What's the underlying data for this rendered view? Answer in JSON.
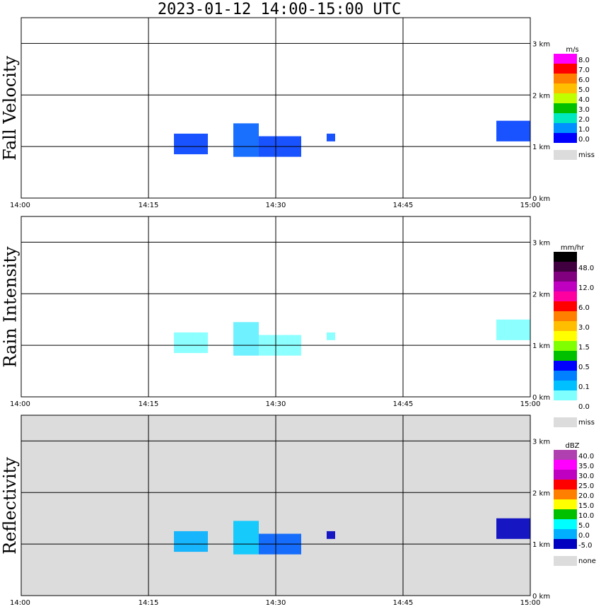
{
  "title": "2023-01-12  14:00-15:00 UTC",
  "colors": {
    "panel_border": "#000000",
    "grid": "#000000",
    "missing_background": "#dcdcdc"
  },
  "chart_data": [
    {
      "type": "heatmap",
      "title": "Fall Velocity",
      "xlabel": "",
      "ylabel": "Fall Velocity",
      "x_ticks": [
        "14:00",
        "14:15",
        "14:30",
        "14:45",
        "15:00"
      ],
      "y_ticks": [
        "0 km",
        "1 km",
        "2 km",
        "3 km"
      ],
      "ylim": [
        0,
        3.5
      ],
      "grid": true,
      "background": "white",
      "colorbar": {
        "unit": "m/s",
        "labels": [
          "8.0",
          "7.0",
          "6.0",
          "5.0",
          "4.0",
          "3.0",
          "2.0",
          "1.0",
          "0.0"
        ],
        "colors": [
          "#ff00ff",
          "#ff0000",
          "#ff7f00",
          "#ffbf00",
          "#bfff00",
          "#00c000",
          "#00e8c0",
          "#0090ff",
          "#0000ff"
        ],
        "missing_label": "miss",
        "missing_color": "#dcdcdc"
      },
      "echoes": [
        {
          "start": "14:18",
          "end": "14:22",
          "base_km": 0.85,
          "top_km": 1.25,
          "color": "#0040ff"
        },
        {
          "start": "14:25",
          "end": "14:28",
          "base_km": 0.8,
          "top_km": 1.45,
          "color": "#0060ff"
        },
        {
          "start": "14:28",
          "end": "14:33",
          "base_km": 0.8,
          "top_km": 1.2,
          "color": "#0040ff"
        },
        {
          "start": "14:36",
          "end": "14:37",
          "base_km": 1.1,
          "top_km": 1.25,
          "color": "#0040ff"
        },
        {
          "start": "14:56",
          "end": "15:00",
          "base_km": 1.1,
          "top_km": 1.5,
          "color": "#0040ff"
        }
      ]
    },
    {
      "type": "heatmap",
      "title": "Rain Intensity",
      "xlabel": "",
      "ylabel": "Rain Intensity",
      "x_ticks": [
        "14:00",
        "14:15",
        "14:30",
        "14:45",
        "15:00"
      ],
      "y_ticks": [
        "0 km",
        "1 km",
        "2 km",
        "3 km"
      ],
      "ylim": [
        0,
        3.5
      ],
      "grid": true,
      "background": "white",
      "colorbar": {
        "unit": "mm/hr",
        "labels": [
          "48.0",
          "12.0",
          "6.0",
          "3.0",
          "1.5",
          "0.5",
          "0.1",
          "0.0"
        ],
        "colors": [
          "#000000",
          "#400040",
          "#800080",
          "#c000c0",
          "#ff00a0",
          "#ff0000",
          "#ff8000",
          "#ffbf00",
          "#ffff00",
          "#80ff00",
          "#00c000",
          "#0000ff",
          "#0080ff",
          "#00c0ff",
          "#80ffff",
          "#ffffff"
        ],
        "missing_label": "miss",
        "missing_color": "#dcdcdc"
      },
      "echoes": [
        {
          "start": "14:18",
          "end": "14:22",
          "base_km": 0.85,
          "top_km": 1.25,
          "color": "#80ffff"
        },
        {
          "start": "14:25",
          "end": "14:28",
          "base_km": 0.8,
          "top_km": 1.45,
          "color": "#60f0ff"
        },
        {
          "start": "14:28",
          "end": "14:33",
          "base_km": 0.8,
          "top_km": 1.2,
          "color": "#80ffff"
        },
        {
          "start": "14:36",
          "end": "14:37",
          "base_km": 1.1,
          "top_km": 1.25,
          "color": "#80ffff"
        },
        {
          "start": "14:56",
          "end": "15:00",
          "base_km": 1.1,
          "top_km": 1.5,
          "color": "#80ffff"
        }
      ]
    },
    {
      "type": "heatmap",
      "title": "Reflectivity",
      "xlabel": "",
      "ylabel": "Reflectivity",
      "x_ticks": [
        "14:00",
        "14:15",
        "14:30",
        "14:45",
        "15:00"
      ],
      "y_ticks": [
        "0 km",
        "1 km",
        "2 km",
        "3 km"
      ],
      "ylim": [
        0,
        3.5
      ],
      "grid": true,
      "background": "gray",
      "colorbar": {
        "unit": "dBZ",
        "labels": [
          "40.0",
          "35.0",
          "30.0",
          "25.0",
          "20.0",
          "15.0",
          "10.0",
          "5.0",
          "0.0",
          "-5.0"
        ],
        "colors": [
          "#b040b0",
          "#ff00ff",
          "#c000c0",
          "#ff0000",
          "#ff8000",
          "#ffff00",
          "#00c000",
          "#00ffff",
          "#00b0ff",
          "#0000c0"
        ],
        "missing_label": "none",
        "missing_color": "#dcdcdc"
      },
      "echoes": [
        {
          "start": "14:18",
          "end": "14:22",
          "base_km": 0.85,
          "top_km": 1.25,
          "color": "#00b0ff"
        },
        {
          "start": "14:25",
          "end": "14:28",
          "base_km": 0.8,
          "top_km": 1.45,
          "color": "#00c8ff"
        },
        {
          "start": "14:28",
          "end": "14:33",
          "base_km": 0.8,
          "top_km": 1.2,
          "color": "#0060ff"
        },
        {
          "start": "14:36",
          "end": "14:37",
          "base_km": 1.1,
          "top_km": 1.25,
          "color": "#0000c0"
        },
        {
          "start": "14:56",
          "end": "15:00",
          "base_km": 1.1,
          "top_km": 1.5,
          "color": "#0000c0"
        }
      ]
    }
  ]
}
